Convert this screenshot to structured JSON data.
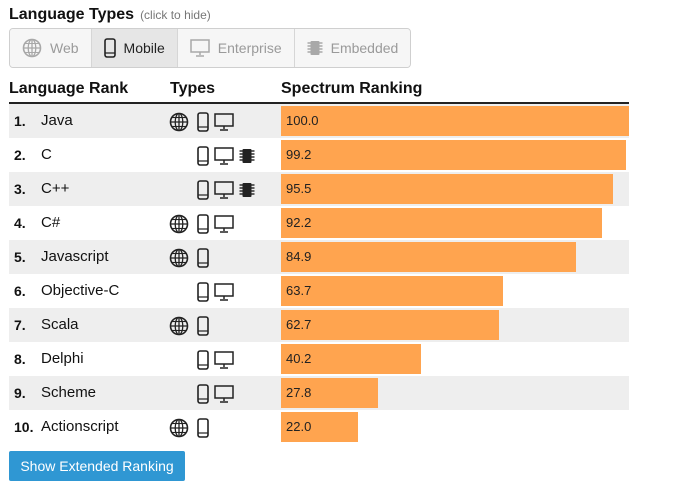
{
  "header": {
    "title": "Language Types",
    "hint": "(click to hide)"
  },
  "filters": [
    {
      "label": "Web",
      "icon": "globe-icon",
      "active": false
    },
    {
      "label": "Mobile",
      "icon": "mobile-icon",
      "active": true
    },
    {
      "label": "Enterprise",
      "icon": "monitor-icon",
      "active": false
    },
    {
      "label": "Embedded",
      "icon": "chip-icon",
      "active": false
    }
  ],
  "table": {
    "columns": {
      "rank": "Language Rank",
      "types": "Types",
      "spectrum": "Spectrum Ranking"
    },
    "max_score": 100,
    "rows": [
      {
        "rank": "1.",
        "language": "Java",
        "score": "100.0",
        "types": [
          "web",
          "mobile",
          "enterprise"
        ]
      },
      {
        "rank": "2.",
        "language": "C",
        "score": "99.2",
        "types": [
          "mobile",
          "enterprise",
          "embedded"
        ]
      },
      {
        "rank": "3.",
        "language": "C++",
        "score": "95.5",
        "types": [
          "mobile",
          "enterprise",
          "embedded"
        ]
      },
      {
        "rank": "4.",
        "language": "C#",
        "score": "92.2",
        "types": [
          "web",
          "mobile",
          "enterprise"
        ]
      },
      {
        "rank": "5.",
        "language": "Javascript",
        "score": "84.9",
        "types": [
          "web",
          "mobile"
        ]
      },
      {
        "rank": "6.",
        "language": "Objective-C",
        "score": "63.7",
        "types": [
          "mobile",
          "enterprise"
        ]
      },
      {
        "rank": "7.",
        "language": "Scala",
        "score": "62.7",
        "types": [
          "web",
          "mobile"
        ]
      },
      {
        "rank": "8.",
        "language": "Delphi",
        "score": "40.2",
        "types": [
          "mobile",
          "enterprise"
        ]
      },
      {
        "rank": "9.",
        "language": "Scheme",
        "score": "27.8",
        "types": [
          "mobile",
          "enterprise"
        ]
      },
      {
        "rank": "10.",
        "language": "Actionscript",
        "score": "22.0",
        "types": [
          "web",
          "mobile"
        ]
      }
    ]
  },
  "extended_button": {
    "label": "Show Extended Ranking"
  },
  "colors": {
    "bar": "#ffa44f",
    "button": "#2f97d3"
  }
}
